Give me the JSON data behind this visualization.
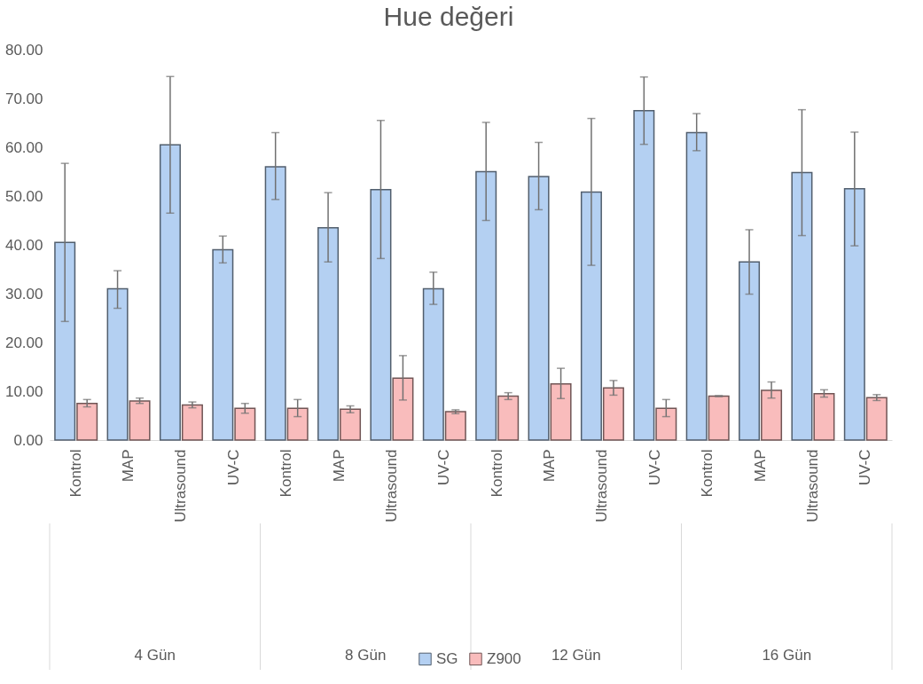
{
  "chart_data": {
    "type": "bar",
    "title": "Hue değeri",
    "categories": [
      "Kontrol",
      "MAP",
      "Ultrasound",
      "UV-C",
      "Kontrol",
      "MAP",
      "Ultrasound",
      "UV-C",
      "Kontrol",
      "MAP",
      "Ultrasound",
      "UV-C",
      "Kontrol",
      "MAP",
      "Ultrasound",
      "UV-C"
    ],
    "annotations": [
      "4  Gün",
      "8  Gün",
      "12  Gün",
      "16  Gün"
    ],
    "series": [
      {
        "name": "SG",
        "color": "#b4d0f2",
        "values": [
          40.5,
          31,
          60.5,
          39,
          56,
          43.5,
          51.3,
          31,
          55,
          54,
          50.8,
          67.5,
          63,
          36.5,
          54.8,
          51.5
        ],
        "errors": [
          [
            24.3,
            56.7
          ],
          [
            27,
            34.7
          ],
          [
            46.5,
            74.5
          ],
          [
            36.3,
            41.8
          ],
          [
            49.3,
            63
          ],
          [
            36.5,
            50.7
          ],
          [
            37.2,
            65.5
          ],
          [
            27.8,
            34.4
          ],
          [
            45,
            65.1
          ],
          [
            47.2,
            61
          ],
          [
            35.8,
            65.9
          ],
          [
            60.6,
            74.4
          ],
          [
            59.3,
            66.9
          ],
          [
            29.9,
            43.1
          ],
          [
            41.9,
            67.7
          ],
          [
            39.8,
            63.1
          ]
        ]
      },
      {
        "name": "Z900",
        "color": "#f9bcbc",
        "values": [
          7.5,
          8,
          7.2,
          6.5,
          6.5,
          6.3,
          12.7,
          5.8,
          9,
          11.5,
          10.7,
          6.5,
          9,
          10.2,
          9.5,
          8.7
        ],
        "errors": [
          [
            6.8,
            8.3
          ],
          [
            7.5,
            8.6
          ],
          [
            6.6,
            7.8
          ],
          [
            5.5,
            7.5
          ],
          [
            4.8,
            8.3
          ],
          [
            5.6,
            7
          ],
          [
            8.2,
            17.3
          ],
          [
            5.4,
            6.2
          ],
          [
            8.3,
            9.7
          ],
          [
            8.5,
            14.7
          ],
          [
            9.2,
            12.2
          ],
          [
            4.8,
            8.3
          ],
          [
            8.9,
            9.1
          ],
          [
            8.6,
            11.9
          ],
          [
            8.8,
            10.3
          ],
          [
            8.1,
            9.3
          ]
        ]
      }
    ],
    "ylim": [
      0,
      80
    ],
    "yticks": [
      {
        "value": 0,
        "label": "0.00"
      },
      {
        "value": 10,
        "label": "10.00"
      },
      {
        "value": 20,
        "label": "20.00"
      },
      {
        "value": 30,
        "label": "30.00"
      },
      {
        "value": 40,
        "label": "40.00"
      },
      {
        "value": 50,
        "label": "50.00"
      },
      {
        "value": 60,
        "label": "60.00"
      },
      {
        "value": 70,
        "label": "70.00"
      },
      {
        "value": 80,
        "label": "80.00"
      }
    ],
    "grid": false,
    "legend": "bottom"
  }
}
